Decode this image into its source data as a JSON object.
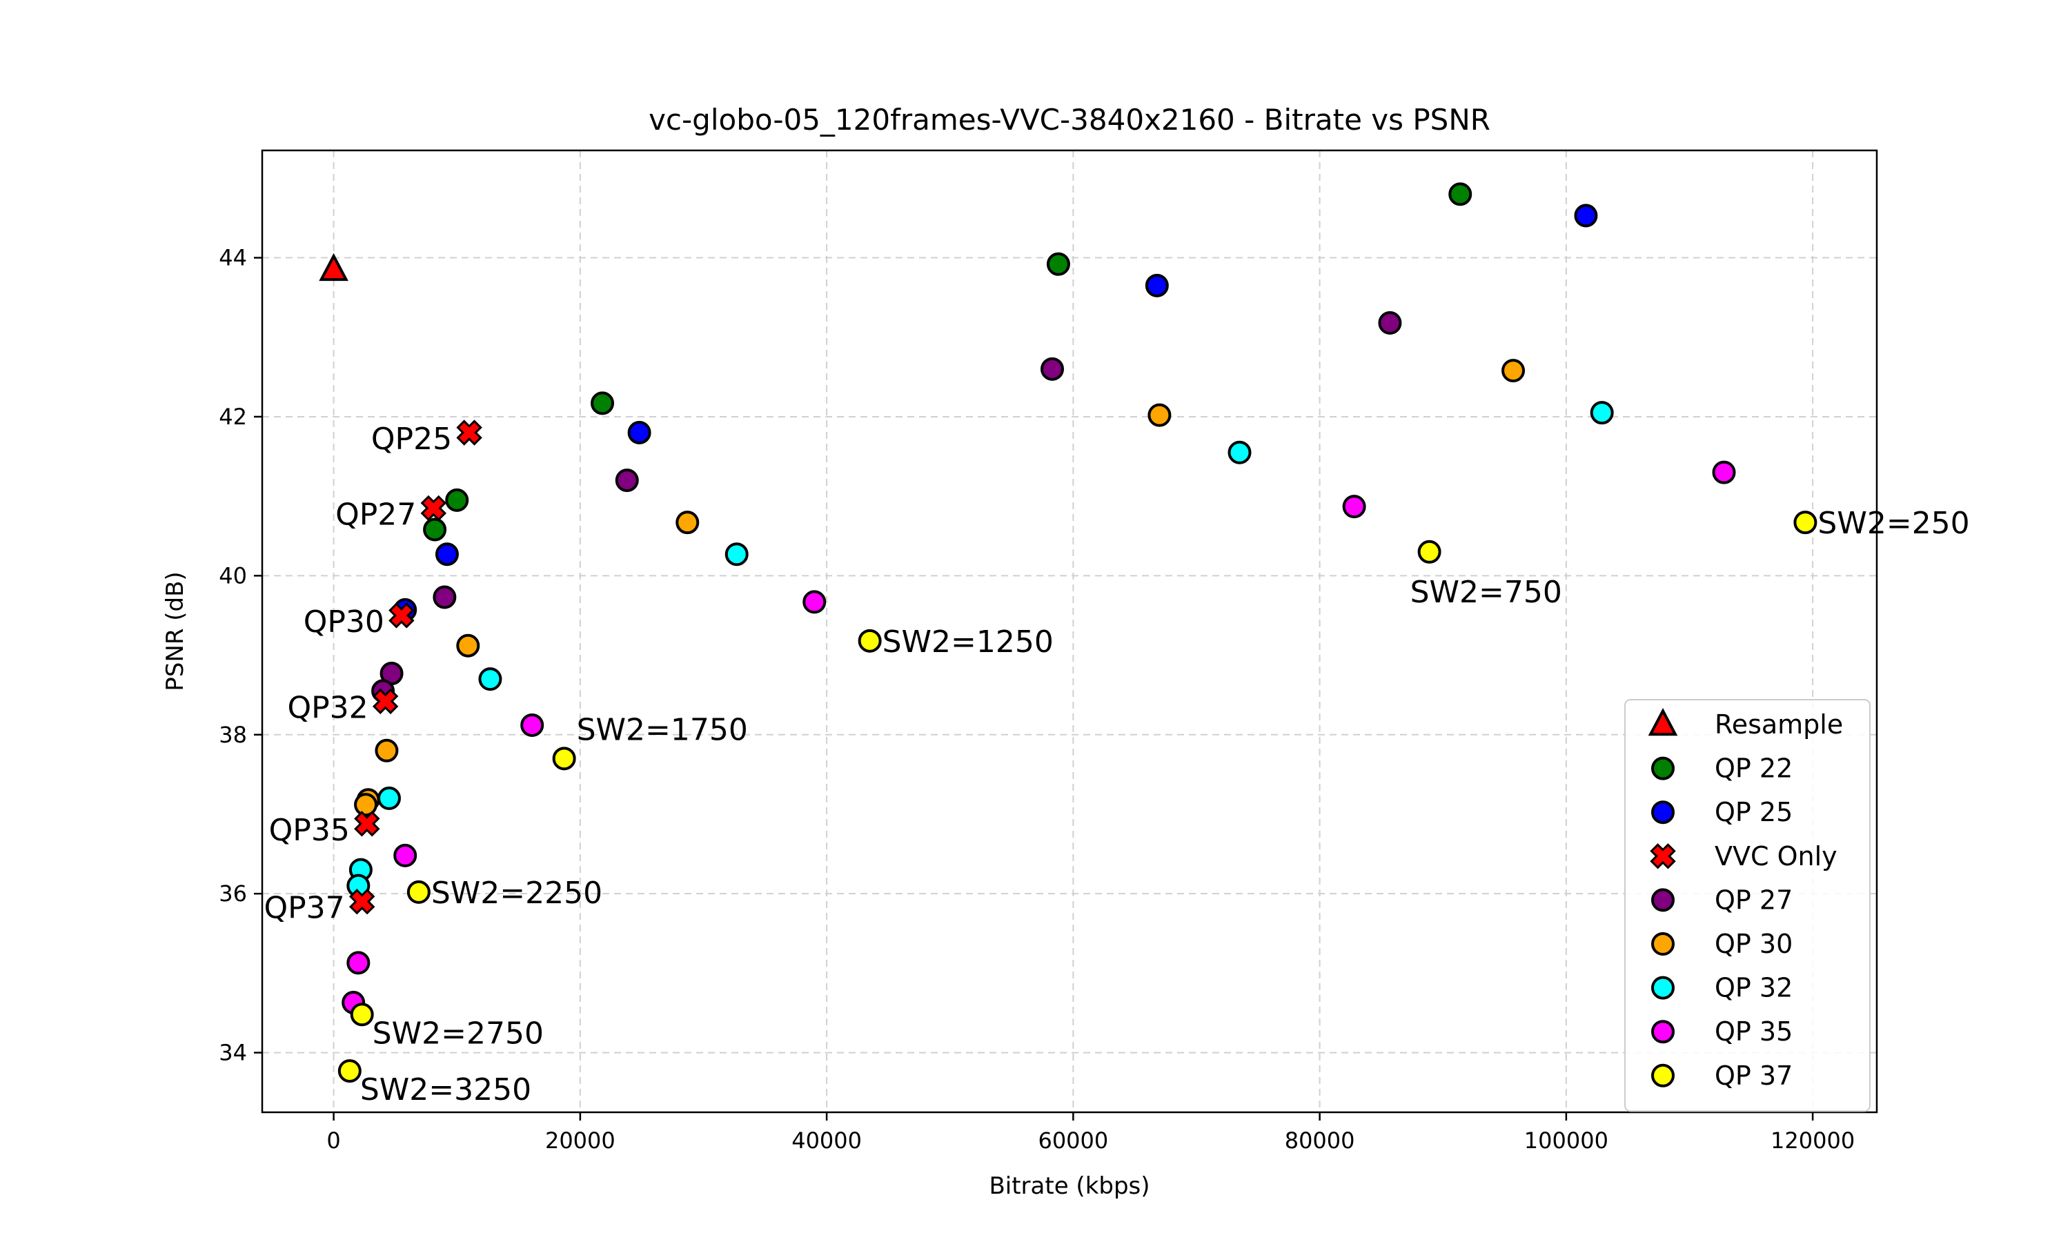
{
  "chart_data": {
    "type": "scatter",
    "title": "vc-globo-05_120frames-VVC-3840x2160 - Bitrate vs PSNR",
    "xlabel": "Bitrate (kbps)",
    "ylabel": "PSNR (dB)",
    "xlim": [
      -5800,
      125200
    ],
    "ylim": [
      33.25,
      45.35
    ],
    "xticks": [
      0,
      20000,
      40000,
      60000,
      80000,
      100000,
      120000
    ],
    "yticks": [
      34,
      36,
      38,
      40,
      42,
      44
    ],
    "grid": true,
    "legend_position": "bottom-right",
    "series": [
      {
        "name": "Resample",
        "marker": "triangle",
        "color": "#ff0000",
        "points": [
          [
            0,
            43.85
          ]
        ]
      },
      {
        "name": "QP 22",
        "marker": "circle",
        "color": "#008000",
        "points": [
          [
            58800,
            43.92
          ],
          [
            91400,
            44.8
          ],
          [
            21800,
            42.17
          ],
          [
            10000,
            40.95
          ],
          [
            8200,
            40.58
          ]
        ]
      },
      {
        "name": "QP 25",
        "marker": "circle",
        "color": "#0000ff",
        "points": [
          [
            66800,
            43.65
          ],
          [
            101600,
            44.53
          ],
          [
            24800,
            41.8
          ],
          [
            9200,
            40.27
          ],
          [
            5800,
            39.57
          ]
        ]
      },
      {
        "name": "VVC Only",
        "marker": "x",
        "color": "#ff0000",
        "points": [
          [
            11000,
            41.8
          ],
          [
            8100,
            40.85
          ],
          [
            5500,
            39.5
          ],
          [
            4200,
            38.42
          ],
          [
            2700,
            36.88
          ],
          [
            2300,
            35.9
          ]
        ]
      },
      {
        "name": "QP 27",
        "marker": "circle",
        "color": "#800080",
        "points": [
          [
            58300,
            42.6
          ],
          [
            85700,
            43.18
          ],
          [
            23800,
            41.2
          ],
          [
            9000,
            39.73
          ],
          [
            4700,
            38.77
          ],
          [
            4000,
            38.55
          ]
        ]
      },
      {
        "name": "QP 30",
        "marker": "circle",
        "color": "#ffa500",
        "points": [
          [
            67000,
            42.02
          ],
          [
            95700,
            42.58
          ],
          [
            28700,
            40.67
          ],
          [
            10900,
            39.12
          ],
          [
            4300,
            37.8
          ],
          [
            2800,
            37.18
          ],
          [
            2600,
            37.12
          ]
        ]
      },
      {
        "name": "QP 32",
        "marker": "circle",
        "color": "#00ffff",
        "points": [
          [
            73500,
            41.55
          ],
          [
            102900,
            42.05
          ],
          [
            32700,
            40.27
          ],
          [
            12700,
            38.7
          ],
          [
            4500,
            37.2
          ],
          [
            2200,
            36.3
          ],
          [
            2000,
            36.1
          ]
        ]
      },
      {
        "name": "QP 35",
        "marker": "circle",
        "color": "#ff00ff",
        "points": [
          [
            82800,
            40.87
          ],
          [
            112800,
            41.3
          ],
          [
            39000,
            39.67
          ],
          [
            16100,
            38.12
          ],
          [
            5800,
            36.48
          ],
          [
            2000,
            35.13
          ],
          [
            1600,
            34.63
          ]
        ]
      },
      {
        "name": "QP 37",
        "marker": "circle",
        "color": "#ffff00",
        "points": [
          [
            88900,
            40.3
          ],
          [
            119400,
            40.67
          ],
          [
            43500,
            39.18
          ],
          [
            18700,
            37.7
          ],
          [
            6900,
            36.02
          ],
          [
            2300,
            34.48
          ],
          [
            1300,
            33.77
          ]
        ]
      }
    ],
    "annotations": [
      {
        "text": "QP25",
        "x": 11000,
        "y": 41.8,
        "anchor": "end"
      },
      {
        "text": "QP27",
        "x": 8100,
        "y": 40.85,
        "anchor": "end"
      },
      {
        "text": "QP30",
        "x": 5500,
        "y": 39.5,
        "anchor": "end"
      },
      {
        "text": "QP32",
        "x": 4200,
        "y": 38.42,
        "anchor": "end"
      },
      {
        "text": "QP35",
        "x": 2700,
        "y": 36.88,
        "anchor": "end"
      },
      {
        "text": "QP37",
        "x": 2300,
        "y": 35.9,
        "anchor": "end"
      },
      {
        "text": "SW2=250",
        "x": 119400,
        "y": 40.67,
        "anchor": "right"
      },
      {
        "text": "SW2=750",
        "x": 88900,
        "y": 40.3,
        "anchor": "below"
      },
      {
        "text": "SW2=1250",
        "x": 43500,
        "y": 39.18,
        "anchor": "right"
      },
      {
        "text": "SW2=1750",
        "x": 18700,
        "y": 37.7,
        "anchor": "above-right"
      },
      {
        "text": "SW2=2250",
        "x": 6900,
        "y": 36.02,
        "anchor": "right"
      },
      {
        "text": "SW2=2750",
        "x": 2300,
        "y": 34.48,
        "anchor": "below-right"
      },
      {
        "text": "SW2=3250",
        "x": 1300,
        "y": 33.77,
        "anchor": "below-right"
      }
    ]
  }
}
